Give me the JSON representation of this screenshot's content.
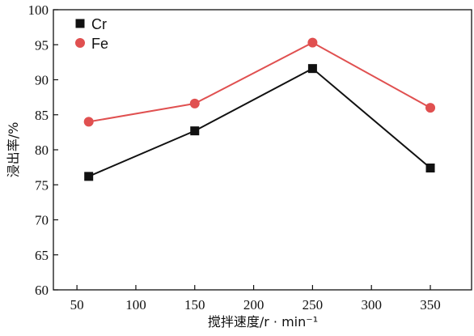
{
  "chart_data": {
    "type": "line",
    "x": [
      60,
      150,
      250,
      350
    ],
    "series": [
      {
        "name": "Cr",
        "values": [
          76.2,
          82.7,
          91.6,
          77.4
        ],
        "color": "#111111",
        "marker": "square"
      },
      {
        "name": "Fe",
        "values": [
          84.0,
          86.6,
          95.3,
          86.0
        ],
        "color": "#e05050",
        "marker": "circle"
      }
    ],
    "xlabel": "搅拌速度/r · min⁻¹",
    "ylabel": "浸出率/%",
    "xlim": [
      30,
      385
    ],
    "ylim": [
      60,
      100
    ],
    "xticks": [
      50,
      100,
      150,
      200,
      250,
      300,
      350
    ],
    "yticks": [
      60,
      65,
      70,
      75,
      80,
      85,
      90,
      95,
      100
    ],
    "legend_position": "top-left",
    "grid": false
  }
}
